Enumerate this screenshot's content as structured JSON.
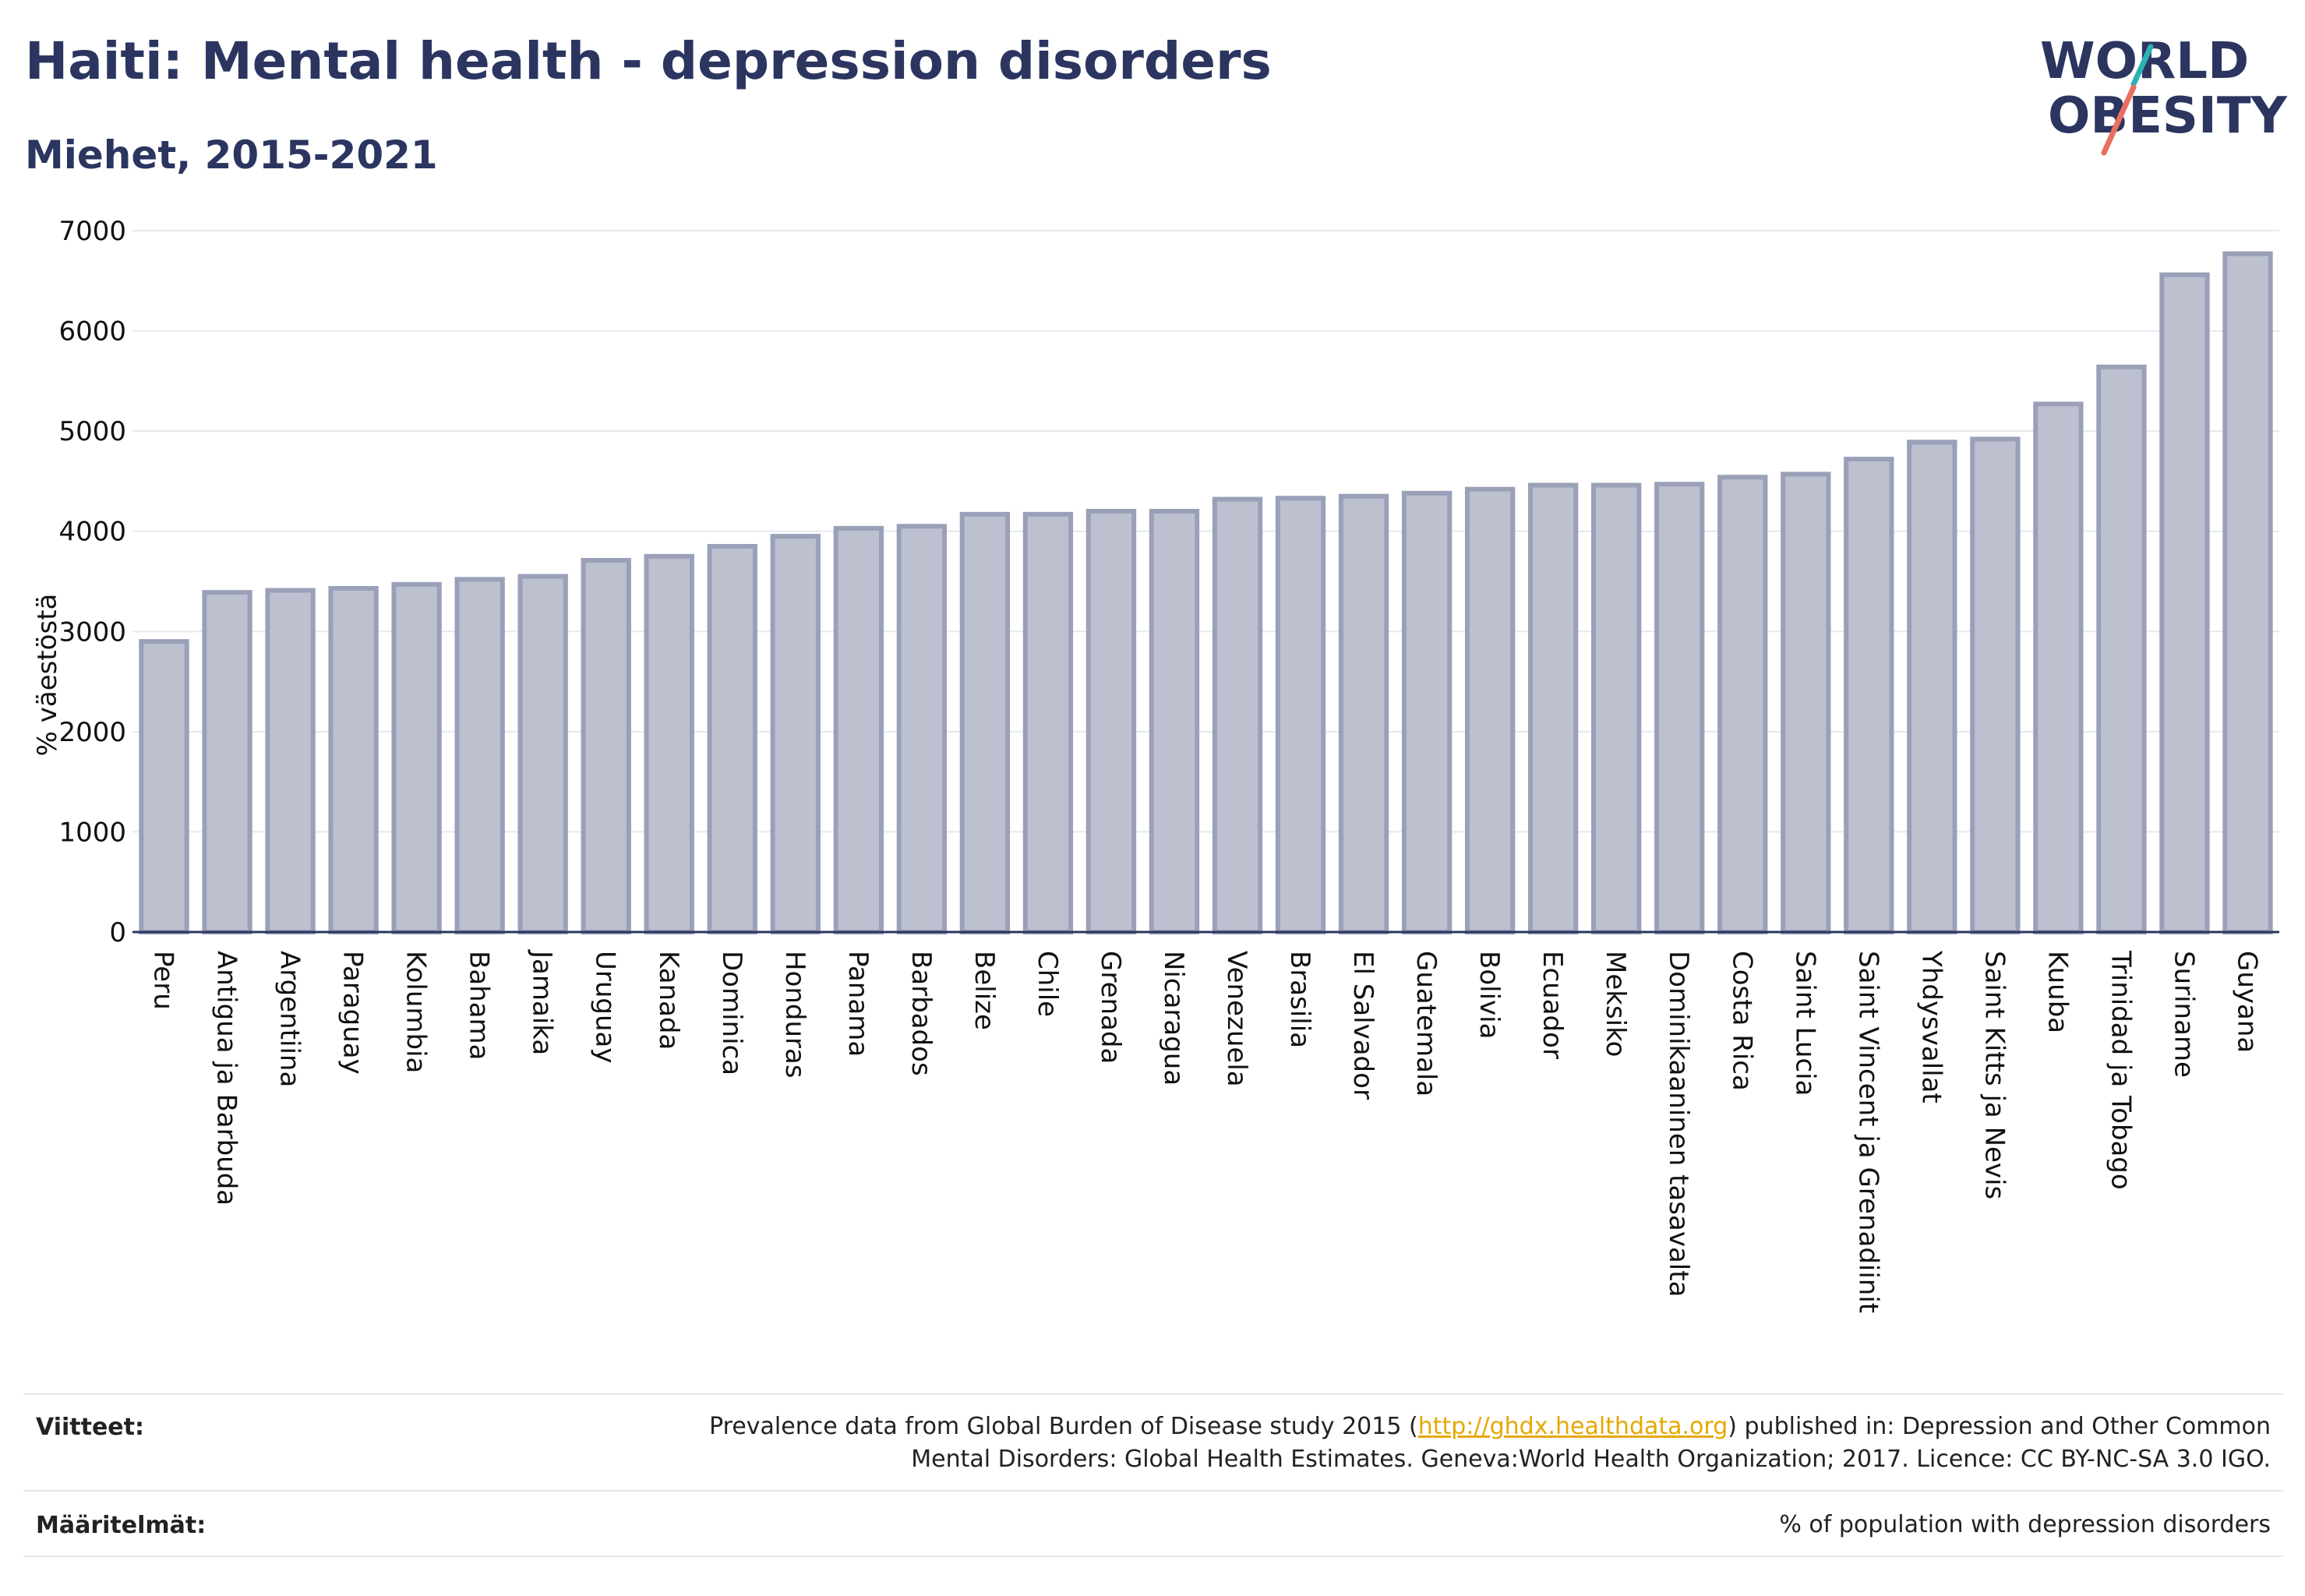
{
  "header": {
    "title": "Haiti: Mental health - depression disorders",
    "subtitle": "Miehet, 2015-2021"
  },
  "logo": {
    "line1": "WORLD",
    "line2": "OBESITY",
    "accent_teal": "#2bb3b1",
    "accent_coral": "#e8705f"
  },
  "colors": {
    "bar_fill": "#bcc0cf",
    "bar_stroke": "#9aa0b8",
    "text": "#2b3560",
    "grid": "#e6e8ef",
    "link": "#e6a800"
  },
  "chart_data": {
    "type": "bar",
    "ylabel": "% väestöstä",
    "ylim": [
      0,
      7000
    ],
    "yticks": [
      0,
      1000,
      2000,
      3000,
      4000,
      5000,
      6000,
      7000
    ],
    "grid": true,
    "categories": [
      "Peru",
      "Antigua ja Barbuda",
      "Argentiina",
      "Paraguay",
      "Kolumbia",
      "Bahama",
      "Jamaika",
      "Uruguay",
      "Kanada",
      "Dominica",
      "Honduras",
      "Panama",
      "Barbados",
      "Belize",
      "Chile",
      "Grenada",
      "Nicaragua",
      "Venezuela",
      "Brasilia",
      "El Salvador",
      "Guatemala",
      "Bolivia",
      "Ecuador",
      "Meksiko",
      "Dominikaaninen tasavalta",
      "Costa Rica",
      "Saint Lucia",
      "Saint Vincent ja Grenadiinit",
      "Yhdysvallat",
      "Saint Kitts ja Nevis",
      "Kuuba",
      "Trinidad ja Tobago",
      "Suriname",
      "Guyana"
    ],
    "values": [
      2900,
      3390,
      3410,
      3430,
      3470,
      3520,
      3550,
      3710,
      3750,
      3850,
      3950,
      4030,
      4050,
      4170,
      4170,
      4200,
      4200,
      4320,
      4330,
      4350,
      4380,
      4420,
      4460,
      4460,
      4470,
      4540,
      4570,
      4720,
      4890,
      4920,
      5270,
      5640,
      6560,
      6770
    ]
  },
  "footer": {
    "references_label": "Viitteet:",
    "references_pre": "Prevalence data from Global Burden of Disease study 2015 (",
    "references_link": "http://ghdx.healthdata.org",
    "references_post": ") published in: Depression and Other Common",
    "references_line2": "Mental Disorders: Global Health Estimates. Geneva:World Health Organization; 2017. Licence: CC BY-NC-SA 3.0 IGO.",
    "definitions_label": "Määritelmät:",
    "definitions_text": "% of population with depression disorders"
  }
}
